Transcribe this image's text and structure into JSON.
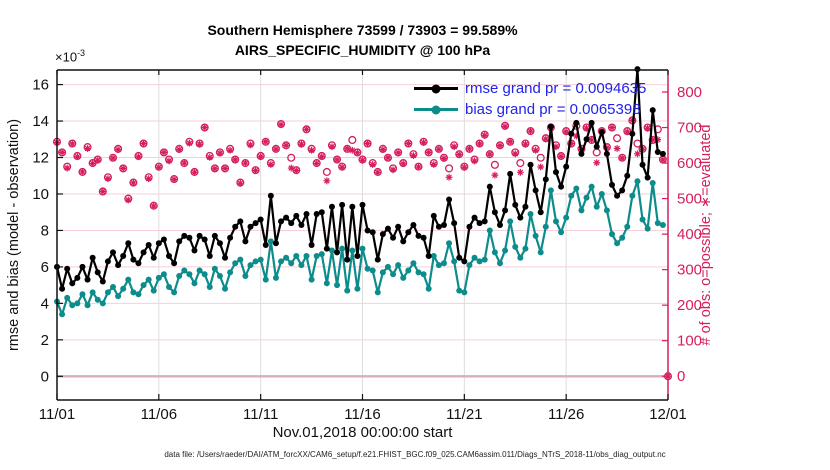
{
  "figure": {
    "title_line1": "Southern Hemisphere 73599 / 73903 = 99.589%",
    "title_line2": "AIRS_SPECIFIC_HUMIDITY @ 100 hPa",
    "y_multiplier_base": "×10",
    "y_multiplier_exp": "-3",
    "ylabel_left": "rmse and bias (model - observation)",
    "ylabel_right": "# of obs: o=possible; ∗=evaluated",
    "xlabel": "Nov.01,2018 00:00:00 start",
    "footer": "data file: /Users/raeder/DAI/ATM_forcXX/CAM6_setup/f.e21.FHIST_BGC.f09_025.CAM6assim.011/Diags_NTrS_2018-11/obs_diag_output.nc",
    "legend": [
      {
        "label": "rmse grand pr = 0.0094635",
        "series": "rmse"
      },
      {
        "label": "bias grand pr = 0.0065398",
        "series": "bias"
      }
    ]
  },
  "colors": {
    "rmse": "#000000",
    "bias": "#0d8c8c",
    "obs": "#d41e5f",
    "legend_text": "#2222e8",
    "grid_h": "#f6cfd9",
    "zero_line": "#d9aeb8",
    "grid_v": "#dcdcdc",
    "axis": "#111111"
  },
  "chart_data": {
    "type": "line",
    "title": "Southern Hemisphere 73599 / 73903 = 99.589% | AIRS_SPECIFIC_HUMIDITY @ 100 hPa",
    "x_start_day": 0,
    "x_step_days": 0.25,
    "x_range_days": [
      0,
      30
    ],
    "x_ticks": [
      0,
      5,
      10,
      15,
      20,
      25,
      30
    ],
    "x_ticklabels": [
      "11/01",
      "11/06",
      "11/11",
      "11/16",
      "11/21",
      "11/26",
      "12/01"
    ],
    "ylim_left": [
      -1.3,
      16.8
    ],
    "yleft_ticks": [
      0,
      2,
      4,
      6,
      8,
      10,
      12,
      14,
      16
    ],
    "yleft_ticklabels": [
      "0",
      "2",
      "4",
      "6",
      "8",
      "10",
      "12",
      "14",
      "16"
    ],
    "ylim_right": [
      -67,
      862
    ],
    "yright_ticks": [
      0,
      100,
      200,
      300,
      400,
      500,
      600,
      700,
      800
    ],
    "yright_ticklabels": [
      "0",
      "100",
      "200",
      "300",
      "400",
      "500",
      "600",
      "700",
      "800"
    ],
    "units_left": "1e-3",
    "rmse_grand_avg": 0.0094635,
    "bias_grand_avg": 0.0065398,
    "series": [
      {
        "name": "rmse",
        "values_1e3": [
          6.0,
          4.8,
          5.9,
          5.1,
          5.4,
          6.0,
          5.3,
          6.5,
          5.7,
          5.2,
          6.3,
          6.8,
          6.1,
          6.6,
          7.3,
          6.4,
          6.2,
          6.8,
          7.2,
          6.5,
          7.3,
          7.5,
          6.6,
          6.2,
          7.4,
          7.7,
          7.6,
          6.9,
          7.7,
          7.5,
          6.6,
          7.7,
          7.3,
          6.5,
          7.6,
          8.2,
          8.5,
          7.4,
          8.2,
          8.4,
          8.6,
          7.2,
          9.9,
          7.3,
          8.5,
          8.7,
          8.4,
          8.8,
          8.3,
          8.9,
          7.2,
          8.9,
          9.0,
          7.0,
          9.3,
          6.8,
          9.4,
          6.4,
          9.3,
          6.6,
          9.4,
          8.0,
          7.9,
          6.4,
          7.8,
          8.1,
          7.6,
          8.2,
          7.4,
          7.9,
          8.3,
          7.7,
          7.6,
          6.6,
          8.8,
          8.2,
          8.3,
          9.7,
          8.4,
          6.5,
          6.3,
          8.2,
          8.7,
          8.4,
          8.5,
          10.4,
          9.0,
          8.3,
          9.1,
          11.1,
          9.4,
          8.7,
          9.3,
          11.6,
          10.2,
          9.0,
          10.8,
          13.7,
          11.2,
          10.4,
          11.5,
          13.3,
          13.9,
          12.2,
          13.0,
          13.9,
          12.6,
          13.4,
          12.2,
          10.5,
          9.9,
          10.2,
          11.0,
          13.3,
          16.85,
          11.6,
          10.9,
          14.6,
          12.3,
          12.2
        ]
      },
      {
        "name": "bias",
        "values_1e3": [
          4.1,
          3.4,
          4.3,
          3.9,
          4.0,
          4.5,
          3.9,
          4.6,
          4.2,
          4.0,
          4.6,
          4.9,
          4.4,
          4.8,
          5.3,
          4.6,
          4.5,
          5.0,
          5.3,
          4.7,
          5.4,
          5.6,
          4.9,
          4.6,
          5.5,
          5.8,
          5.6,
          5.1,
          5.8,
          5.6,
          4.9,
          5.9,
          5.5,
          4.8,
          5.7,
          6.2,
          6.4,
          5.5,
          6.1,
          6.3,
          6.4,
          5.3,
          7.4,
          5.4,
          6.3,
          6.5,
          6.2,
          6.6,
          6.1,
          6.6,
          5.3,
          6.6,
          6.7,
          5.1,
          6.9,
          5.0,
          7.0,
          4.7,
          6.9,
          4.8,
          7.0,
          5.9,
          5.8,
          4.6,
          5.7,
          6.0,
          5.6,
          6.1,
          5.4,
          5.8,
          6.2,
          5.7,
          5.6,
          4.8,
          6.6,
          6.1,
          6.2,
          7.3,
          6.3,
          4.7,
          4.6,
          6.1,
          6.5,
          6.3,
          6.4,
          8.0,
          6.8,
          6.2,
          6.9,
          8.5,
          7.1,
          6.5,
          7.0,
          8.9,
          7.7,
          6.8,
          8.2,
          10.2,
          8.5,
          7.9,
          8.7,
          9.9,
          10.3,
          9.1,
          9.8,
          10.4,
          9.3,
          10.0,
          9.1,
          7.8,
          7.3,
          7.6,
          8.2,
          9.9,
          10.7,
          8.6,
          8.1,
          10.6,
          8.4,
          8.3
        ]
      }
    ],
    "obs": {
      "possible": [
        660,
        630,
        590,
        655,
        620,
        575,
        645,
        600,
        610,
        520,
        560,
        615,
        640,
        585,
        500,
        545,
        620,
        655,
        560,
        480,
        590,
        630,
        610,
        555,
        640,
        600,
        660,
        575,
        655,
        700,
        620,
        585,
        630,
        585,
        640,
        610,
        545,
        600,
        655,
        580,
        620,
        660,
        600,
        640,
        710,
        650,
        615,
        580,
        655,
        695,
        640,
        600,
        620,
        575,
        650,
        610,
        590,
        640,
        665,
        630,
        610,
        655,
        600,
        575,
        640,
        615,
        585,
        630,
        600,
        655,
        625,
        590,
        660,
        630,
        600,
        640,
        615,
        585,
        650,
        625,
        590,
        640,
        610,
        655,
        680,
        625,
        595,
        650,
        705,
        660,
        630,
        600,
        655,
        690,
        640,
        615,
        670,
        700,
        650,
        620,
        690,
        655,
        705,
        640,
        700,
        665,
        630,
        690,
        645,
        700,
        670,
        615,
        690,
        720,
        655,
        640,
        700,
        665,
        695,
        610,
        0
      ],
      "evaluated": [
        658,
        630,
        586,
        654,
        618,
        575,
        641,
        599,
        608,
        520,
        556,
        614,
        638,
        585,
        496,
        544,
        618,
        655,
        556,
        479,
        588,
        630,
        606,
        554,
        638,
        600,
        656,
        574,
        653,
        700,
        616,
        584,
        628,
        585,
        636,
        609,
        543,
        600,
        651,
        579,
        618,
        660,
        596,
        639,
        708,
        650,
        586,
        579,
        653,
        695,
        636,
        599,
        618,
        550,
        646,
        609,
        588,
        640,
        636,
        629,
        608,
        655,
        596,
        574,
        638,
        615,
        581,
        629,
        598,
        655,
        621,
        589,
        658,
        630,
        596,
        639,
        613,
        560,
        646,
        624,
        588,
        640,
        606,
        654,
        678,
        625,
        566,
        649,
        703,
        660,
        626,
        574,
        653,
        690,
        636,
        589,
        668,
        700,
        646,
        619,
        688,
        655,
        676,
        639,
        698,
        665,
        601,
        689,
        643,
        700,
        641,
        614,
        688,
        720,
        626,
        639,
        698,
        665,
        666,
        609,
        0
      ]
    }
  }
}
